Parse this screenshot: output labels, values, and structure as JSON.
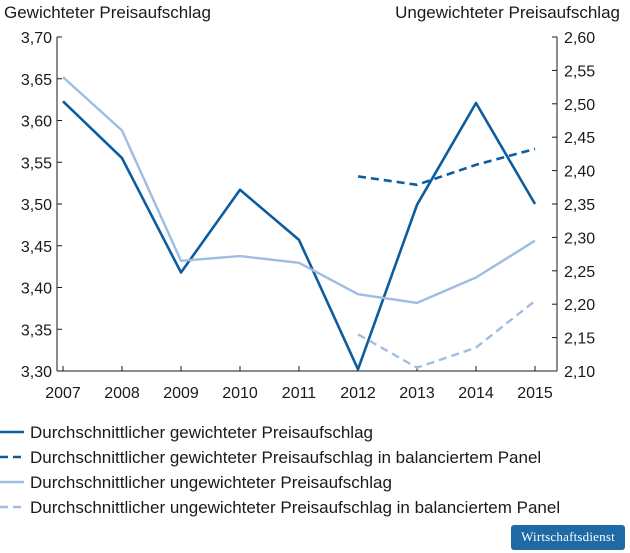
{
  "chart_data": {
    "type": "line",
    "left_axis_title": "Gewichteter Preisaufschlag",
    "right_axis_title": "Ungewichteter Preisaufschlag",
    "categories": [
      "2007",
      "2008",
      "2009",
      "2010",
      "2011",
      "2012",
      "2013",
      "2014",
      "2015"
    ],
    "y_left": {
      "range": [
        3.3,
        3.7
      ],
      "ticks": [
        "3,70",
        "3,65",
        "3,60",
        "3,55",
        "3,50",
        "3,45",
        "3,40",
        "3,35",
        "3,30"
      ]
    },
    "y_right": {
      "range": [
        2.1,
        2.6
      ],
      "ticks": [
        "2,60",
        "2,55",
        "2,50",
        "2,45",
        "2,40",
        "2,35",
        "2,30",
        "2,25",
        "2,20",
        "2,15",
        "2,10"
      ]
    },
    "grid": false,
    "legend_position": "bottom",
    "series": [
      {
        "name": "Durchschnittlicher gewichteter Preisaufschlag",
        "axis": "left",
        "color": "#0d5c9e",
        "style": "solid",
        "values": [
          3.623,
          3.555,
          3.418,
          3.517,
          3.457,
          3.302,
          3.499,
          3.621,
          3.5
        ]
      },
      {
        "name": "Durchschnittlicher gewichteter Preisaufschlag in balanciertem Panel",
        "axis": "left",
        "color": "#0d5c9e",
        "style": "dashed",
        "values": [
          null,
          null,
          null,
          null,
          null,
          3.533,
          3.523,
          3.547,
          3.566
        ]
      },
      {
        "name": "Durchschnittlicher ungewichteter Preisaufschlag",
        "axis": "right",
        "color": "#9fbde3",
        "style": "solid",
        "values": [
          2.54,
          2.46,
          2.265,
          2.272,
          2.262,
          2.215,
          2.202,
          2.24,
          2.295
        ]
      },
      {
        "name": "Durchschnittlicher ungewichteter Preisaufschlag in balanciertem Panel",
        "axis": "right",
        "color": "#9fbde3",
        "style": "dashed",
        "values": [
          null,
          null,
          null,
          null,
          null,
          2.155,
          2.105,
          2.135,
          2.205
        ]
      }
    ]
  },
  "logo": "Wirtschaftsdienst"
}
